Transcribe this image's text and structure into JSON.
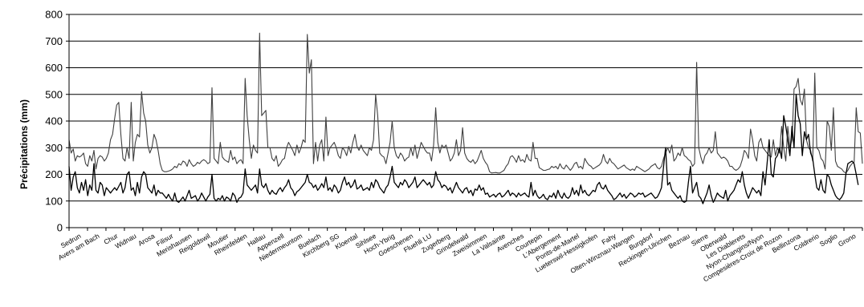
{
  "chart_data": {
    "type": "line",
    "ylabel": "Précipitations (mm)",
    "ylim": [
      0,
      800
    ],
    "yticks": [
      0,
      100,
      200,
      300,
      400,
      500,
      600,
      700,
      800
    ],
    "grid": true,
    "legend": "none",
    "x_labels_sampled": [
      "Sedrun",
      "Avers am Bach",
      "Chur",
      "Widnau",
      "Arosa",
      "Filisur",
      "Merishausen",
      "Reigoldswil",
      "Moutier",
      "Rheinfelden",
      "Hallau",
      "Appenzell",
      "Niedermeuntom",
      "Buelach",
      "Kirchberg SG",
      "Kloental",
      "Sihlsee",
      "Hoch-Ybrig",
      "Goeschenen",
      "Fluehli LU",
      "Zugerberg",
      "Grindelwald",
      "Zweisimmen",
      "La Valsainte",
      "Avenches",
      "Courtepin",
      "L'Abergement",
      "Ponts-de-Martel",
      "Lueterswil-Hessigkofen",
      "Fahy",
      "Olten-Winznau-Wangen",
      "Burgdorf",
      "Reckingen-Ulrichen",
      "Beznau",
      "Sierre",
      "Oberwald",
      "Les Diablerets",
      "Nyon-Changins/Nyon",
      "Compesières-Croix de Rozon",
      "Bellinzona",
      "Coldrerio",
      "Soglio",
      "Grono"
    ],
    "series": [
      {
        "color": "#404040",
        "values": [
          330,
          280,
          295,
          250,
          270,
          265,
          270,
          280,
          240,
          230,
          270,
          250,
          290,
          220,
          260,
          270,
          265,
          250,
          260,
          280,
          330,
          350,
          410,
          460,
          470,
          350,
          260,
          250,
          300,
          260,
          470,
          250,
          320,
          350,
          340,
          510,
          430,
          400,
          310,
          280,
          300,
          350,
          330,
          290,
          240,
          215,
          210,
          210,
          212,
          215,
          220,
          230,
          225,
          240,
          235,
          250,
          245,
          230,
          255,
          240,
          230,
          235,
          245,
          240,
          250,
          255,
          250,
          240,
          245,
          525,
          260,
          250,
          240,
          320,
          265,
          255,
          250,
          245,
          290,
          255,
          265,
          240,
          250,
          255,
          240,
          560,
          420,
          330,
          260,
          310,
          290,
          280,
          730,
          420,
          430,
          440,
          300,
          300,
          260,
          250,
          270,
          230,
          240,
          255,
          260,
          300,
          320,
          305,
          290,
          270,
          310,
          280,
          300,
          330,
          320,
          725,
          580,
          630,
          240,
          320,
          250,
          310,
          330,
          250,
          415,
          270,
          300,
          310,
          320,
          300,
          270,
          260,
          300,
          290,
          270,
          305,
          280,
          320,
          350,
          305,
          290,
          310,
          290,
          280,
          270,
          300,
          290,
          330,
          500,
          420,
          280,
          270,
          265,
          240,
          280,
          320,
          400,
          300,
          270,
          260,
          280,
          270,
          250,
          260,
          265,
          300,
          270,
          310,
          260,
          290,
          320,
          305,
          290,
          280,
          280,
          250,
          310,
          450,
          320,
          280,
          310,
          300,
          310,
          280,
          250,
          260,
          280,
          330,
          270,
          290,
          375,
          280,
          260,
          250,
          245,
          255,
          240,
          250,
          270,
          290,
          260,
          245,
          235,
          210,
          205,
          206,
          207,
          205,
          205,
          210,
          215,
          230,
          240,
          265,
          270,
          260,
          245,
          270,
          250,
          255,
          245,
          275,
          255,
          250,
          320,
          260,
          260,
          225,
          220,
          215,
          215,
          218,
          220,
          230,
          225,
          230,
          220,
          240,
          225,
          220,
          235,
          225,
          215,
          225,
          240,
          245,
          225,
          230,
          220,
          260,
          245,
          235,
          230,
          220,
          225,
          230,
          235,
          245,
          275,
          250,
          240,
          260,
          245,
          240,
          230,
          220,
          225,
          230,
          235,
          225,
          220,
          215,
          220,
          215,
          230,
          225,
          220,
          215,
          210,
          215,
          220,
          230,
          235,
          240,
          225,
          220,
          230,
          260,
          280,
          300,
          280,
          310,
          250,
          260,
          280,
          270,
          300,
          270,
          265,
          255,
          250,
          230,
          240,
          620,
          300,
          265,
          240,
          270,
          280,
          300,
          280,
          290,
          360,
          280,
          270,
          260,
          265,
          260,
          250,
          230,
          230,
          220,
          215,
          220,
          230,
          255,
          290,
          280,
          260,
          370,
          330,
          270,
          250,
          320,
          335,
          300,
          290,
          280,
          270,
          265,
          330,
          270,
          300,
          280,
          380,
          300,
          250,
          380,
          300,
          330,
          520,
          530,
          560,
          480,
          460,
          520,
          330,
          300,
          290,
          250,
          580,
          300,
          290,
          260,
          250,
          220,
          400,
          380,
          290,
          450,
          250,
          230,
          225,
          220,
          210,
          205,
          215,
          230,
          240,
          245,
          450,
          360,
          355,
          240
        ]
      },
      {
        "color": "#000000",
        "values": [
          230,
          140,
          190,
          210,
          150,
          130,
          170,
          140,
          180,
          120,
          160,
          140,
          240,
          140,
          130,
          170,
          160,
          120,
          150,
          140,
          130,
          140,
          150,
          140,
          155,
          170,
          130,
          150,
          200,
          210,
          140,
          150,
          120,
          170,
          130,
          190,
          210,
          200,
          150,
          140,
          130,
          160,
          120,
          140,
          130,
          130,
          120,
          110,
          125,
          110,
          100,
          130,
          100,
          95,
          105,
          115,
          100,
          120,
          140,
          110,
          115,
          120,
          100,
          110,
          130,
          115,
          100,
          115,
          125,
          200,
          110,
          100,
          110,
          105,
          120,
          100,
          115,
          110,
          100,
          130,
          120,
          95,
          110,
          115,
          130,
          220,
          160,
          150,
          140,
          150,
          160,
          130,
          220,
          160,
          150,
          165,
          140,
          125,
          140,
          130,
          125,
          140,
          150,
          135,
          150,
          160,
          180,
          150,
          140,
          120,
          135,
          140,
          150,
          160,
          170,
          200,
          170,
          165,
          150,
          160,
          140,
          150,
          165,
          150,
          190,
          140,
          150,
          135,
          160,
          150,
          130,
          140,
          170,
          190,
          160,
          170,
          150,
          160,
          180,
          145,
          150,
          160,
          140,
          145,
          150,
          140,
          170,
          150,
          180,
          170,
          150,
          140,
          130,
          150,
          160,
          190,
          230,
          170,
          160,
          150,
          170,
          160,
          180,
          170,
          150,
          160,
          170,
          190,
          150,
          160,
          170,
          180,
          170,
          160,
          170,
          150,
          160,
          210,
          180,
          170,
          150,
          160,
          155,
          140,
          150,
          130,
          150,
          170,
          150,
          140,
          130,
          145,
          150,
          130,
          140,
          120,
          145,
          140,
          160,
          140,
          150,
          125,
          130,
          115,
          120,
          125,
          115,
          125,
          130,
          115,
          120,
          130,
          140,
          120,
          130,
          125,
          115,
          130,
          120,
          125,
          130,
          120,
          115,
          170,
          120,
          140,
          120,
          110,
          115,
          125,
          110,
          105,
          120,
          115,
          130,
          110,
          140,
          120,
          110,
          130,
          115,
          110,
          120,
          150,
          125,
          140,
          120,
          160,
          130,
          140,
          125,
          120,
          130,
          140,
          135,
          160,
          170,
          150,
          145,
          160,
          140,
          130,
          120,
          105,
          110,
          120,
          130,
          115,
          125,
          110,
          120,
          130,
          125,
          115,
          120,
          130,
          125,
          130,
          115,
          120,
          125,
          130,
          120,
          110,
          115,
          130,
          150,
          230,
          300,
          160,
          170,
          140,
          130,
          120,
          110,
          120,
          100,
          95,
          100,
          170,
          230,
          130,
          150,
          170,
          120,
          110,
          90,
          110,
          130,
          160,
          120,
          95,
          110,
          130,
          120,
          115,
          110,
          140,
          100,
          120,
          130,
          140,
          160,
          180,
          170,
          210,
          160,
          130,
          110,
          130,
          150,
          140,
          130,
          140,
          120,
          210,
          160,
          240,
          330,
          200,
          190,
          260,
          270,
          300,
          260,
          420,
          380,
          330,
          270,
          380,
          300,
          500,
          420,
          390,
          270,
          360,
          330,
          350,
          280,
          260,
          200,
          150,
          140,
          180,
          140,
          130,
          200,
          190,
          160,
          140,
          120,
          110,
          105,
          115,
          130,
          200,
          240,
          245,
          250,
          240,
          200,
          160
        ]
      }
    ]
  }
}
